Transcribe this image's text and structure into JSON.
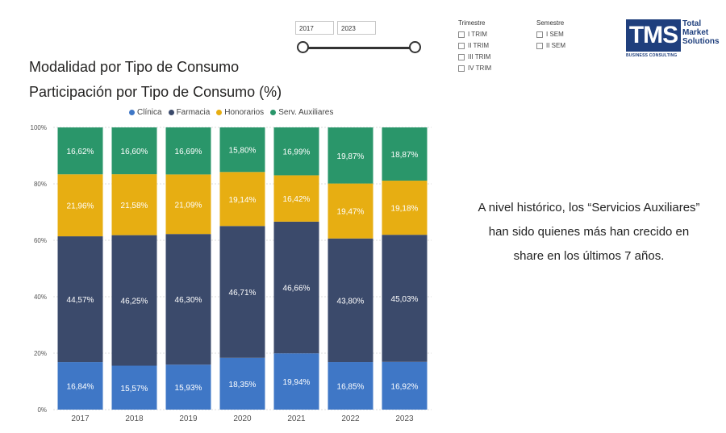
{
  "filters": {
    "year_start": "2017",
    "year_end": "2023",
    "trimestre": {
      "title": "Trimestre",
      "options": [
        "I TRIM",
        "II TRIM",
        "III TRIM",
        "IV TRIM"
      ]
    },
    "semestre": {
      "title": "Semestre",
      "options": [
        "I SEM",
        "II SEM"
      ]
    }
  },
  "logo": {
    "mark": "TMS",
    "line1": "Total",
    "line2": "Market",
    "line3": "Solutions",
    "sub": "BUSINESS CONSULTING"
  },
  "header": {
    "title": "Modalidad por Tipo de Consumo",
    "subtitle": "Participación por Tipo de Consumo (%)"
  },
  "annotation": "A nivel histórico, los “Servicios Auxiliares” han sido quienes más han crecido en share en los últimos 7 años.",
  "colors": {
    "Clínica": "#3f77c6",
    "Farmacia": "#3b4a6b",
    "Honorarios": "#e7ae12",
    "Serv. Auxiliares": "#2a966a"
  },
  "chart_data": {
    "type": "bar",
    "stacked": true,
    "title": "Participación por Tipo de Consumo (%)",
    "categories": [
      "2017",
      "2018",
      "2019",
      "2020",
      "2021",
      "2022",
      "2023"
    ],
    "series": [
      {
        "name": "Clínica",
        "values": [
          16.84,
          15.57,
          15.93,
          18.35,
          19.94,
          16.85,
          16.92
        ],
        "labels": [
          "16,84%",
          "15,57%",
          "15,93%",
          "18,35%",
          "19,94%",
          "16,85%",
          "16,92%"
        ]
      },
      {
        "name": "Farmacia",
        "values": [
          44.57,
          46.25,
          46.3,
          46.71,
          46.66,
          43.8,
          45.03
        ],
        "labels": [
          "44,57%",
          "46,25%",
          "46,30%",
          "46,71%",
          "46,66%",
          "43,80%",
          "45,03%"
        ]
      },
      {
        "name": "Honorarios",
        "values": [
          21.96,
          21.58,
          21.09,
          19.14,
          16.42,
          19.47,
          19.18
        ],
        "labels": [
          "21,96%",
          "21,58%",
          "21,09%",
          "19,14%",
          "16,42%",
          "19,47%",
          "19,18%"
        ]
      },
      {
        "name": "Serv. Auxiliares",
        "values": [
          16.62,
          16.6,
          16.69,
          15.8,
          16.99,
          19.87,
          18.87
        ],
        "labels": [
          "16,62%",
          "16,60%",
          "16,69%",
          "15,80%",
          "16,99%",
          "19,87%",
          "18,87%"
        ]
      }
    ],
    "y_ticks": [
      "0%",
      "20%",
      "40%",
      "60%",
      "80%",
      "100%"
    ],
    "ylim": [
      0,
      100
    ],
    "legend_position": "top"
  }
}
